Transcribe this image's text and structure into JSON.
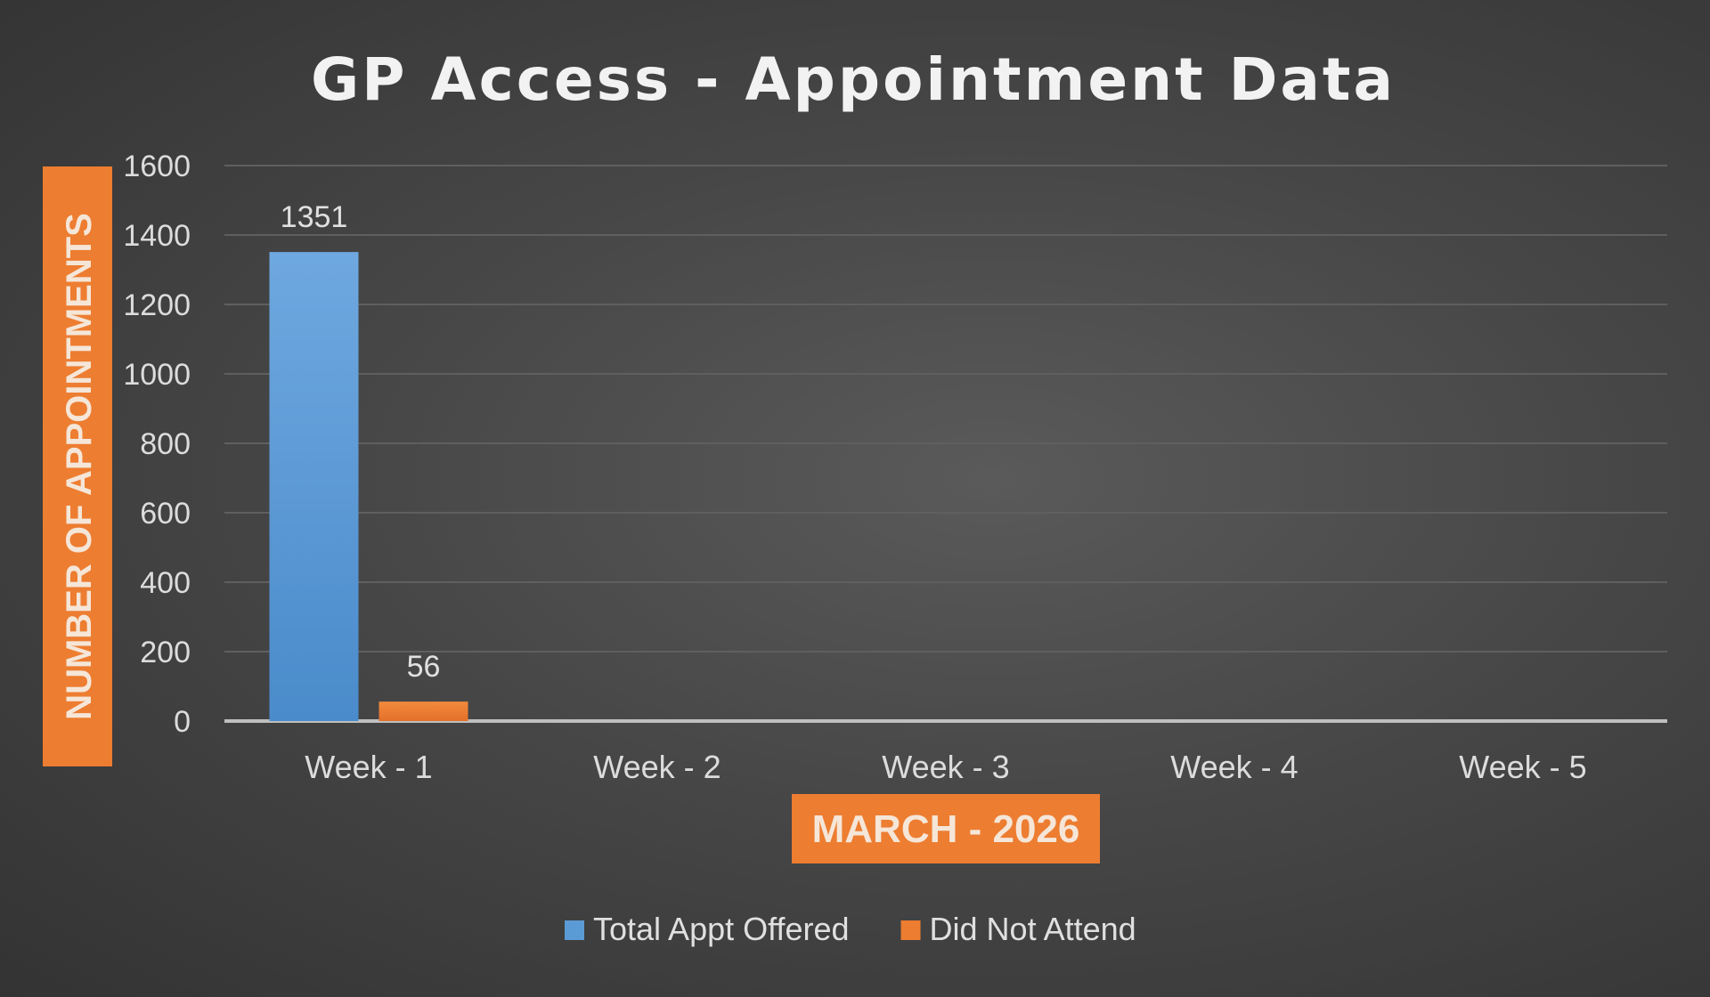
{
  "chart_data": {
    "type": "bar",
    "title": "GP Access - Appointment Data",
    "xlabel": "MARCH - 2026",
    "ylabel": "NUMBER OF APPOINTMENTS",
    "categories": [
      "Week - 1",
      "Week - 2",
      "Week - 3",
      "Week - 4",
      "Week - 5"
    ],
    "series": [
      {
        "name": "Total Appt Offered",
        "values": [
          1351,
          null,
          null,
          null,
          null
        ],
        "color": "#5b9bd5"
      },
      {
        "name": "Did Not Attend",
        "values": [
          56,
          null,
          null,
          null,
          null
        ],
        "color": "#ed7d31"
      }
    ],
    "data_labels": [
      "1351",
      "56"
    ],
    "ylim": [
      0,
      1600
    ],
    "yticks": [
      0,
      200,
      400,
      600,
      800,
      1000,
      1200,
      1400,
      1600
    ],
    "ytick_labels": [
      "0",
      "200",
      "400",
      "600",
      "800",
      "1000",
      "1200",
      "1400",
      "1600"
    ],
    "grid": true,
    "legend_position": "bottom",
    "colors": {
      "background": "#474747",
      "gridline": "#5f5f5f",
      "baseline": "#bfbfbf",
      "axis_title_bg": "#ed7d31"
    }
  }
}
